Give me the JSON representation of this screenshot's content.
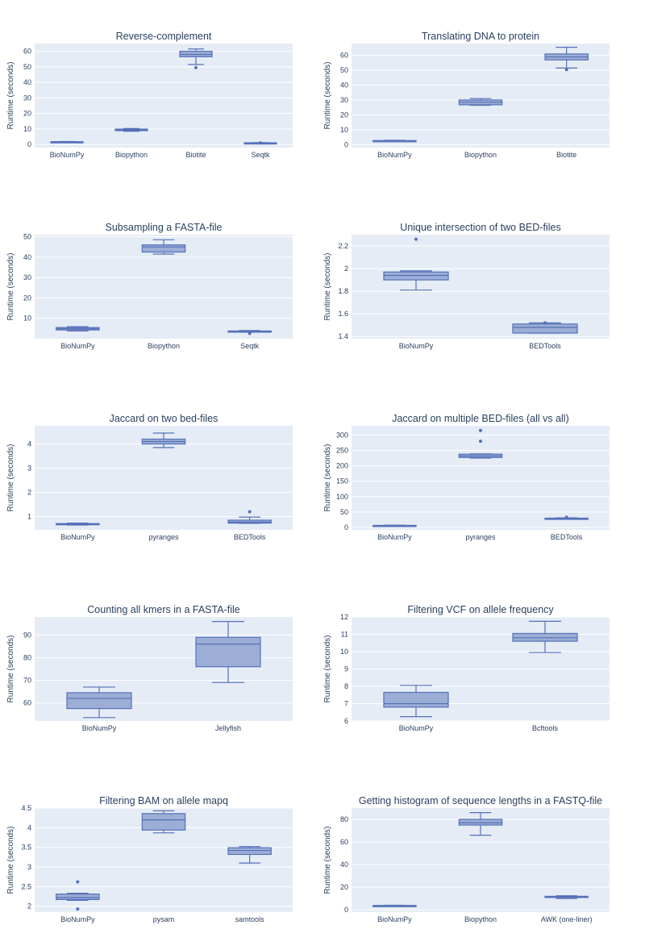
{
  "colors": {
    "plot_bg": "#e5ecf6",
    "grid": "#ffffff",
    "box_fill": "#9caed5",
    "box_line": "#5470b8",
    "text": "#2a3f5f"
  },
  "chart_data": [
    {
      "type": "box",
      "title": "Reverse-complement",
      "ylabel": "Runtime (seconds)",
      "ylim": [
        -2,
        65
      ],
      "yticks": [
        0,
        10,
        20,
        30,
        40,
        50,
        60
      ],
      "ytick_labels": [
        "0",
        "10",
        "20",
        "30",
        "40",
        "50",
        "60"
      ],
      "categories": [
        "BioNumPy",
        "Biopython",
        "Biotite",
        "Seqtk"
      ],
      "boxes": [
        {
          "min": 1.5,
          "q1": 1.6,
          "median": 1.7,
          "q3": 1.8,
          "max": 1.9,
          "outliers": []
        },
        {
          "min": 8.5,
          "q1": 8.9,
          "median": 9.4,
          "q3": 9.9,
          "max": 10.3,
          "outliers": []
        },
        {
          "min": 51.5,
          "q1": 56.5,
          "median": 58,
          "q3": 60,
          "max": 61.5,
          "outliers": [
            49.5
          ]
        },
        {
          "min": 0.8,
          "q1": 0.9,
          "median": 1.0,
          "q3": 1.1,
          "max": 1.2,
          "outliers": [
            1.0
          ]
        }
      ]
    },
    {
      "type": "box",
      "title": "Translating DNA to protein",
      "ylabel": "Runtime (seconds)",
      "ylim": [
        -2,
        68
      ],
      "yticks": [
        0,
        10,
        20,
        30,
        40,
        50,
        60
      ],
      "ytick_labels": [
        "0",
        "10",
        "20",
        "30",
        "40",
        "50",
        "60"
      ],
      "categories": [
        "BioNumPy",
        "Biopython",
        "Biotite"
      ],
      "boxes": [
        {
          "min": 2.3,
          "q1": 2.5,
          "median": 2.6,
          "q3": 2.7,
          "max": 2.9,
          "outliers": []
        },
        {
          "min": 26.5,
          "q1": 26.8,
          "median": 28.5,
          "q3": 30,
          "max": 31,
          "outliers": []
        },
        {
          "min": 51.5,
          "q1": 57,
          "median": 59,
          "q3": 61,
          "max": 65.5,
          "outliers": [
            50.5
          ]
        }
      ]
    },
    {
      "type": "box",
      "title": "Subsampling a FASTA-file",
      "ylabel": "Runtime (seconds)",
      "ylim": [
        0,
        51
      ],
      "yticks": [
        10,
        20,
        30,
        40,
        50
      ],
      "ytick_labels": [
        "10",
        "20",
        "30",
        "40",
        "50"
      ],
      "categories": [
        "BioNumPy",
        "Biopython",
        "Seqtk"
      ],
      "boxes": [
        {
          "min": 3.8,
          "q1": 4.3,
          "median": 4.9,
          "q3": 5.5,
          "max": 5.9,
          "outliers": []
        },
        {
          "min": 41.5,
          "q1": 42.5,
          "median": 45,
          "q3": 46,
          "max": 48.5,
          "outliers": []
        },
        {
          "min": 3.2,
          "q1": 3.4,
          "median": 3.6,
          "q3": 3.8,
          "max": 4.0,
          "outliers": [
            2.6
          ]
        }
      ]
    },
    {
      "type": "box",
      "title": "Unique intersection of two BED-files",
      "ylabel": "Runtime (seconds)",
      "ylim": [
        1.38,
        2.3
      ],
      "yticks": [
        1.4,
        1.6,
        1.8,
        2.0,
        2.2
      ],
      "ytick_labels": [
        "1.4",
        "1.6",
        "1.8",
        "2",
        "2.2"
      ],
      "categories": [
        "BioNumPy",
        "BEDTools"
      ],
      "boxes": [
        {
          "min": 1.81,
          "q1": 1.9,
          "median": 1.94,
          "q3": 1.97,
          "max": 1.98,
          "outliers": [
            2.26
          ]
        },
        {
          "min": 1.43,
          "q1": 1.43,
          "median": 1.48,
          "q3": 1.51,
          "max": 1.52,
          "outliers": [
            1.52
          ]
        }
      ]
    },
    {
      "type": "box",
      "title": "Jaccard on two bed-files",
      "ylabel": "Runtime (seconds)",
      "ylim": [
        0.45,
        4.75
      ],
      "yticks": [
        1,
        2,
        3,
        4
      ],
      "ytick_labels": [
        "1",
        "2",
        "3",
        "4"
      ],
      "categories": [
        "BioNumPy",
        "pyranges",
        "BEDTools"
      ],
      "boxes": [
        {
          "min": 0.65,
          "q1": 0.66,
          "median": 0.68,
          "q3": 0.71,
          "max": 0.73,
          "outliers": []
        },
        {
          "min": 3.85,
          "q1": 4.0,
          "median": 4.1,
          "q3": 4.2,
          "max": 4.45,
          "outliers": []
        },
        {
          "min": 0.72,
          "q1": 0.73,
          "median": 0.77,
          "q3": 0.85,
          "max": 0.98,
          "outliers": [
            1.2
          ]
        }
      ]
    },
    {
      "type": "box",
      "title": "Jaccard on multiple BED-files (all vs all)",
      "ylabel": "Runtime (seconds)",
      "ylim": [
        -8,
        330
      ],
      "yticks": [
        0,
        50,
        100,
        150,
        200,
        250,
        300
      ],
      "ytick_labels": [
        "0",
        "50",
        "100",
        "150",
        "200",
        "250",
        "300"
      ],
      "categories": [
        "BioNumPy",
        "pyranges",
        "BEDTools"
      ],
      "boxes": [
        {
          "min": 5,
          "q1": 5.5,
          "median": 6,
          "q3": 6.5,
          "max": 7,
          "outliers": []
        },
        {
          "min": 225,
          "q1": 227,
          "median": 232,
          "q3": 238,
          "max": 239,
          "outliers": [
            280,
            315
          ]
        },
        {
          "min": 27,
          "q1": 28,
          "median": 29,
          "q3": 30,
          "max": 31,
          "outliers": [
            33
          ]
        }
      ]
    },
    {
      "type": "box",
      "title": "Counting all kmers in a FASTA-file",
      "ylabel": "Runtime (seconds)",
      "ylim": [
        52,
        98
      ],
      "yticks": [
        60,
        70,
        80,
        90
      ],
      "ytick_labels": [
        "60",
        "70",
        "80",
        "90"
      ],
      "categories": [
        "BioNumPy",
        "Jellyfish"
      ],
      "boxes": [
        {
          "min": 53.5,
          "q1": 57.5,
          "median": 62,
          "q3": 64.5,
          "max": 67,
          "outliers": []
        },
        {
          "min": 69,
          "q1": 76,
          "median": 86,
          "q3": 89,
          "max": 96,
          "outliers": []
        }
      ]
    },
    {
      "type": "box",
      "title": "Filtering VCF on allele frequency",
      "ylabel": "Runtime (seconds)",
      "ylim": [
        6,
        12
      ],
      "yticks": [
        6,
        7,
        8,
        9,
        10,
        11,
        12
      ],
      "ytick_labels": [
        "6",
        "7",
        "8",
        "9",
        "10",
        "11",
        "12"
      ],
      "categories": [
        "BioNumPy",
        "Bcftools"
      ],
      "boxes": [
        {
          "min": 6.25,
          "q1": 6.8,
          "median": 7.0,
          "q3": 7.65,
          "max": 8.05,
          "outliers": []
        },
        {
          "min": 9.95,
          "q1": 10.6,
          "median": 10.8,
          "q3": 11.05,
          "max": 11.75,
          "outliers": []
        }
      ]
    },
    {
      "type": "box",
      "title": "Filtering BAM on allele mapq",
      "ylabel": "Runtime (seconds)",
      "ylim": [
        1.85,
        4.5
      ],
      "yticks": [
        2,
        2.5,
        3,
        3.5,
        4,
        4.5
      ],
      "ytick_labels": [
        "2",
        "2.5",
        "3",
        "3.5",
        "4",
        "4.5"
      ],
      "categories": [
        "BioNumPy",
        "pysam",
        "samtools"
      ],
      "boxes": [
        {
          "min": 2.15,
          "q1": 2.17,
          "median": 2.22,
          "q3": 2.31,
          "max": 2.33,
          "outliers": [
            2.62,
            1.93
          ]
        },
        {
          "min": 3.87,
          "q1": 3.94,
          "median": 4.2,
          "q3": 4.36,
          "max": 4.43,
          "outliers": []
        },
        {
          "min": 3.1,
          "q1": 3.32,
          "median": 3.42,
          "q3": 3.49,
          "max": 3.52,
          "outliers": []
        }
      ]
    },
    {
      "type": "box",
      "title": "Getting histogram of sequence lengths in a FASTQ-file",
      "ylabel": "Runtime (seconds)",
      "ylim": [
        -2,
        90
      ],
      "yticks": [
        0,
        20,
        40,
        60,
        80
      ],
      "ytick_labels": [
        "0",
        "20",
        "40",
        "60",
        "80"
      ],
      "categories": [
        "BioNumPy",
        "Biopython",
        "AWK (one-liner)"
      ],
      "boxes": [
        {
          "min": 3.3,
          "q1": 3.5,
          "median": 3.7,
          "q3": 3.9,
          "max": 4.1,
          "outliers": []
        },
        {
          "min": 66,
          "q1": 75,
          "median": 77,
          "q3": 80,
          "max": 86,
          "outliers": []
        },
        {
          "min": 10,
          "q1": 11,
          "median": 11.5,
          "q3": 12,
          "max": 12.5,
          "outliers": []
        }
      ]
    }
  ]
}
